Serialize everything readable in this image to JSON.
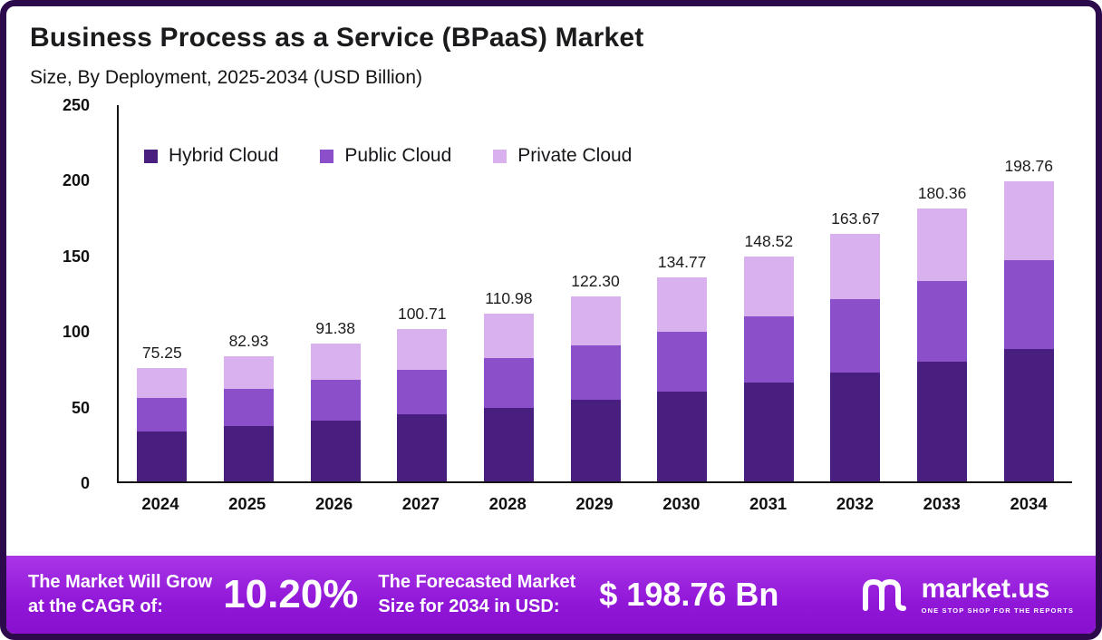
{
  "header": {
    "title": "Business Process as a Service (BPaaS) Market",
    "subtitle": "Size, By Deployment, 2025-2034 (USD Billion)"
  },
  "chart_data": {
    "type": "bar",
    "stacked": true,
    "title": "Business Process as a Service (BPaaS) Market Size, By Deployment, 2025-2034 (USD Billion)",
    "categories": [
      "2024",
      "2025",
      "2026",
      "2027",
      "2028",
      "2029",
      "2030",
      "2031",
      "2032",
      "2033",
      "2034"
    ],
    "totals": [
      75.25,
      82.93,
      91.38,
      100.71,
      110.98,
      122.3,
      134.77,
      148.52,
      163.67,
      180.36,
      198.76
    ],
    "series": [
      {
        "name": "Hybrid Cloud",
        "color": "#481e7f",
        "values": [
          33.1,
          36.5,
          40.2,
          44.3,
          48.8,
          53.8,
          59.3,
          65.4,
          72.0,
          79.4,
          87.5
        ]
      },
      {
        "name": "Public Cloud",
        "color": "#8b50c9",
        "values": [
          22.2,
          24.5,
          27.0,
          29.7,
          32.7,
          36.1,
          39.8,
          43.8,
          48.3,
          53.2,
          58.6
        ]
      },
      {
        "name": "Private Cloud",
        "color": "#d9b1ee",
        "values": [
          19.95,
          21.93,
          24.18,
          26.71,
          29.48,
          32.4,
          35.67,
          39.32,
          43.37,
          47.76,
          52.66
        ]
      }
    ],
    "y_ticks": [
      0,
      50,
      100,
      150,
      200,
      250
    ],
    "ylim": [
      0,
      250
    ],
    "xlabel": "",
    "ylabel": "",
    "grid": false,
    "legend_position": "top-left-inside"
  },
  "footer": {
    "cagr_label_line1": "The Market Will Grow",
    "cagr_label_line2": "at the CAGR of:",
    "cagr_value": "10.20%",
    "forecast_label_line1": "The Forecasted Market",
    "forecast_label_line2": "Size for 2034 in USD:",
    "forecast_value": "$ 198.76 Bn",
    "brand": {
      "name": "market.us",
      "tagline": "ONE STOP SHOP FOR THE REPORTS"
    }
  }
}
